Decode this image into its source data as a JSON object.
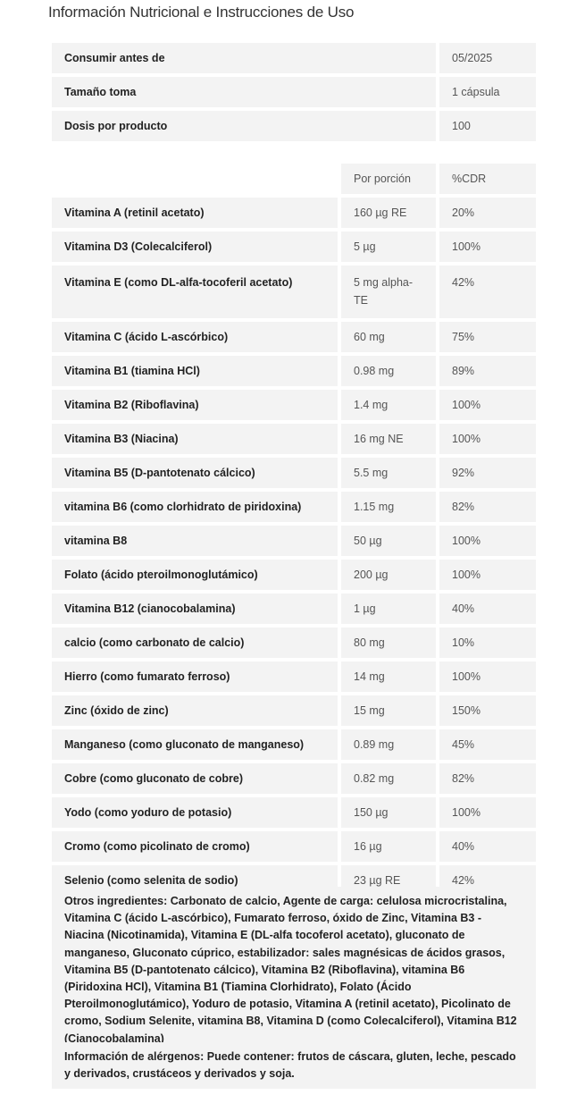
{
  "title": "Información Nutricional e Instrucciones de Uso",
  "info": [
    {
      "label": "Consumir antes de",
      "value": "05/2025"
    },
    {
      "label": "Tamaño toma",
      "value": "1 cápsula"
    },
    {
      "label": "Dosis por producto",
      "value": "100"
    }
  ],
  "nutrients_header": {
    "per_serving": "Por porción",
    "cdr": "%CDR"
  },
  "nutrients": [
    {
      "name": "Vitamina A (retinil acetato)",
      "amount": "160 µg RE",
      "cdr": "20%"
    },
    {
      "name": "Vitamina D3 (Colecalciferol)",
      "amount": "5 µg",
      "cdr": "100%"
    },
    {
      "name": "Vitamina E (como DL-alfa-tocoferil acetato)",
      "amount": "5 mg alpha-TE",
      "cdr": "42%"
    },
    {
      "name": "Vitamina C (ácido L-ascórbico)",
      "amount": "60 mg",
      "cdr": "75%"
    },
    {
      "name": "Vitamina B1 (tiamina HCl)",
      "amount": "0.98 mg",
      "cdr": "89%"
    },
    {
      "name": "Vitamina B2 (Riboflavina)",
      "amount": "1.4 mg",
      "cdr": "100%"
    },
    {
      "name": "Vitamina B3 (Niacina)",
      "amount": "16 mg NE",
      "cdr": "100%"
    },
    {
      "name": "Vitamina B5 (D-pantotenato cálcico)",
      "amount": "5.5 mg",
      "cdr": "92%"
    },
    {
      "name": "vitamina B6 (como clorhidrato de piridoxina)",
      "amount": "1.15 mg",
      "cdr": "82%"
    },
    {
      "name": "vitamina B8",
      "amount": "50 µg",
      "cdr": "100%"
    },
    {
      "name": "Folato (ácido pteroilmonoglutámico)",
      "amount": "200 µg",
      "cdr": "100%"
    },
    {
      "name": "Vitamina B12 (cianocobalamina)",
      "amount": "1 µg",
      "cdr": "40%"
    },
    {
      "name": "calcio (como carbonato de calcio)",
      "amount": "80 mg",
      "cdr": "10%"
    },
    {
      "name": "Hierro (como fumarato ferroso)",
      "amount": "14 mg",
      "cdr": "100%"
    },
    {
      "name": "Zinc (óxido de zinc)",
      "amount": "15 mg",
      "cdr": "150%"
    },
    {
      "name": "Manganeso (como gluconato de manganeso)",
      "amount": "0.89 mg",
      "cdr": "45%"
    },
    {
      "name": "Cobre (como gluconato de cobre)",
      "amount": "0.82 mg",
      "cdr": "82%"
    },
    {
      "name": "Yodo (como yoduro de potasio)",
      "amount": "150 µg",
      "cdr": "100%"
    },
    {
      "name": "Cromo (como picolinato de cromo)",
      "amount": "16 µg",
      "cdr": "40%"
    },
    {
      "name": "Selenio (como selenita de sodio)",
      "amount": "23 µg RE",
      "cdr": "42%"
    }
  ],
  "other_ingredients": "Otros ingredientes: Carbonato de calcio, Agente de carga: celulosa microcristalina, Vitamina C (ácido L-ascórbico), Fumarato ferroso, óxido de Zinc, Vitamina B3 - Niacina (Nicotinamida), Vitamina E (DL-alfa tocoferol acetato), gluconato de manganeso, Gluconato cúprico, estabilizador: sales magnésicas de ácidos grasos, Vitamina B5 (D-pantotenato cálcico), Vitamina B2 (Riboflavina), vitamina B6 (Piridoxina HCl), Vitamina B1 (Tiamina Clorhidrato), Folato (Ácido Pteroilmonoglutámico), Yoduro de potasio, Vitamina A (retinil acetato), Picolinato de cromo, Sodium Selenite, vitamina B8, Vitamina D (como Colecalciferol), Vitamina B12 (Cianocobalamina)",
  "allergens": "Información de alérgenos: Puede contener: frutos de cáscara, gluten, leche, pescado y derivados, crustáceos y derivados y soja."
}
